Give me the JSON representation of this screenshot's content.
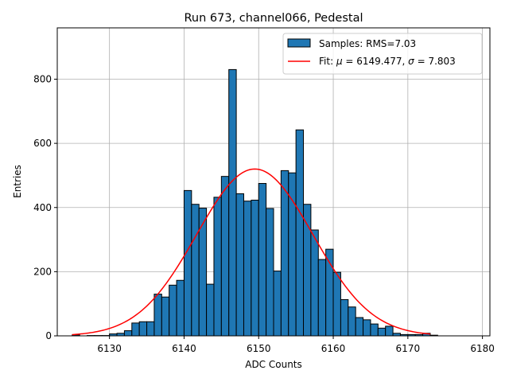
{
  "chart_data": {
    "type": "bar",
    "title": "Run 673, channel066, Pedestal",
    "xlabel": "ADC Counts",
    "ylabel": "Entries",
    "xlim": [
      6123,
      6181
    ],
    "ylim": [
      0,
      960
    ],
    "xticks": [
      6130,
      6140,
      6150,
      6160,
      6170,
      6180
    ],
    "yticks": [
      0,
      200,
      400,
      600,
      800
    ],
    "grid": true,
    "legend_position": "top-right",
    "bin_width": 1,
    "series": [
      {
        "name": "Samples: RMS=7.03",
        "kind": "histogram",
        "color": "#1f77b4",
        "edgecolor": "#000000",
        "bins": [
          6125,
          6126,
          6127,
          6128,
          6129,
          6130,
          6131,
          6132,
          6133,
          6134,
          6135,
          6136,
          6137,
          6138,
          6139,
          6140,
          6141,
          6142,
          6143,
          6144,
          6145,
          6146,
          6147,
          6148,
          6149,
          6150,
          6151,
          6152,
          6153,
          6154,
          6155,
          6156,
          6157,
          6158,
          6159,
          6160,
          6161,
          6162,
          6163,
          6164,
          6165,
          6166,
          6167,
          6168,
          6169,
          6170,
          6171,
          6172,
          6173,
          6174,
          6175,
          6176,
          6177
        ],
        "values": [
          3,
          0,
          1,
          1,
          1,
          6,
          8,
          16,
          40,
          44,
          44,
          130,
          121,
          158,
          173,
          453,
          410,
          398,
          161,
          432,
          497,
          830,
          443,
          420,
          423,
          475,
          397,
          202,
          515,
          508,
          642,
          410,
          330,
          238,
          270,
          198,
          113,
          90,
          57,
          50,
          37,
          24,
          30,
          8,
          4,
          4,
          4,
          8,
          2,
          0,
          0,
          0,
          0
        ]
      },
      {
        "name": "Fit: μ = 6149.477, σ = 7.803",
        "kind": "gaussian-fit",
        "color": "#ff0000",
        "mu": 6149.477,
        "sigma": 7.803,
        "amplitude": 520,
        "x_range": [
          6125,
          6173
        ]
      }
    ]
  },
  "legend": {
    "samples_label": "Samples: RMS=7.03",
    "fit_prefix": "Fit: ",
    "fit_mu_symbol": "μ",
    "fit_mu_text": " = 6149.477, ",
    "fit_sigma_symbol": "σ",
    "fit_sigma_text": " = 7.803"
  }
}
